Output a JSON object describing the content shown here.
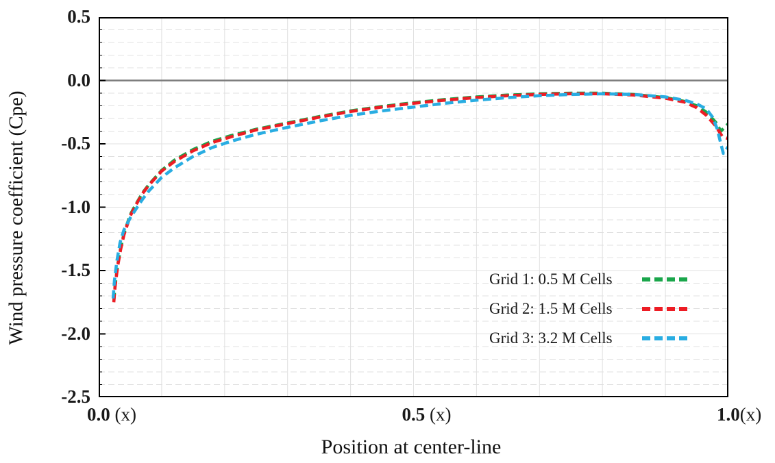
{
  "chart_data": {
    "type": "line",
    "title": "",
    "xlabel": "Position at center-line",
    "ylabel": "Wind pressure coefficient (Cpe)",
    "xlim": [
      0.0,
      1.0
    ],
    "ylim": [
      -2.5,
      0.5
    ],
    "grid": {
      "x_minor_step": 0.1,
      "y_minor_step": 0.1,
      "y_major_step": 0.5,
      "minor_style": "dashed",
      "major_style": "solid",
      "grid_color": "#e0e0e0",
      "zero_line_color": "#7d7d7d",
      "border_color": "#000000"
    },
    "y_ticks": [
      {
        "label": "0.5",
        "value": 0.5
      },
      {
        "label": "0.0",
        "value": 0.0
      },
      {
        "label": "-0.5",
        "value": -0.5
      },
      {
        "label": "-1.0",
        "value": -1.0
      },
      {
        "label": "-1.5",
        "value": -1.5
      },
      {
        "label": "-2.0",
        "value": -2.0
      },
      {
        "label": "-2.5",
        "value": -2.5
      }
    ],
    "x_ticks": [
      {
        "num": "0.0",
        "suffix": " (x)",
        "value": 0.0
      },
      {
        "num": "0.5",
        "suffix": " (x)",
        "value": 0.5
      },
      {
        "num": "1.0",
        "suffix": "(x)",
        "value": 1.0
      }
    ],
    "legend_position": "inside-lower-right",
    "line_style": "dashed",
    "series": [
      {
        "name": "Grid 1: 0.5 M Cells",
        "color": "#1aa64b",
        "points": [
          [
            0.024,
            -1.74
          ],
          [
            0.026,
            -1.62
          ],
          [
            0.03,
            -1.46
          ],
          [
            0.035,
            -1.32
          ],
          [
            0.04,
            -1.21
          ],
          [
            0.05,
            -1.06
          ],
          [
            0.06,
            -0.97
          ],
          [
            0.07,
            -0.885
          ],
          [
            0.08,
            -0.82
          ],
          [
            0.1,
            -0.71
          ],
          [
            0.12,
            -0.63
          ],
          [
            0.15,
            -0.545
          ],
          [
            0.18,
            -0.48
          ],
          [
            0.21,
            -0.435
          ],
          [
            0.25,
            -0.385
          ],
          [
            0.3,
            -0.335
          ],
          [
            0.35,
            -0.285
          ],
          [
            0.4,
            -0.24
          ],
          [
            0.45,
            -0.205
          ],
          [
            0.5,
            -0.175
          ],
          [
            0.55,
            -0.15
          ],
          [
            0.6,
            -0.13
          ],
          [
            0.65,
            -0.115
          ],
          [
            0.7,
            -0.105
          ],
          [
            0.75,
            -0.1
          ],
          [
            0.8,
            -0.1
          ],
          [
            0.85,
            -0.11
          ],
          [
            0.9,
            -0.135
          ],
          [
            0.93,
            -0.165
          ],
          [
            0.95,
            -0.2
          ],
          [
            0.965,
            -0.25
          ],
          [
            0.98,
            -0.33
          ],
          [
            0.988,
            -0.4
          ],
          [
            1.0,
            -0.34
          ]
        ]
      },
      {
        "name": "Grid 2: 1.5 M Cells",
        "color": "#ed1c24",
        "points": [
          [
            0.024,
            -1.75
          ],
          [
            0.026,
            -1.63
          ],
          [
            0.03,
            -1.47
          ],
          [
            0.035,
            -1.33
          ],
          [
            0.04,
            -1.22
          ],
          [
            0.05,
            -1.07
          ],
          [
            0.06,
            -0.975
          ],
          [
            0.07,
            -0.89
          ],
          [
            0.08,
            -0.825
          ],
          [
            0.1,
            -0.715
          ],
          [
            0.12,
            -0.64
          ],
          [
            0.15,
            -0.555
          ],
          [
            0.18,
            -0.49
          ],
          [
            0.21,
            -0.445
          ],
          [
            0.25,
            -0.39
          ],
          [
            0.3,
            -0.34
          ],
          [
            0.35,
            -0.29
          ],
          [
            0.4,
            -0.245
          ],
          [
            0.45,
            -0.21
          ],
          [
            0.5,
            -0.18
          ],
          [
            0.55,
            -0.155
          ],
          [
            0.6,
            -0.135
          ],
          [
            0.65,
            -0.12
          ],
          [
            0.7,
            -0.11
          ],
          [
            0.75,
            -0.105
          ],
          [
            0.8,
            -0.105
          ],
          [
            0.85,
            -0.115
          ],
          [
            0.9,
            -0.14
          ],
          [
            0.93,
            -0.17
          ],
          [
            0.95,
            -0.215
          ],
          [
            0.965,
            -0.275
          ],
          [
            0.98,
            -0.36
          ],
          [
            0.99,
            -0.44
          ],
          [
            1.0,
            -0.46
          ]
        ]
      },
      {
        "name": "Grid 3: 3.2 M Cells",
        "color": "#29ade2",
        "points": [
          [
            0.023,
            -1.72
          ],
          [
            0.025,
            -1.58
          ],
          [
            0.029,
            -1.42
          ],
          [
            0.034,
            -1.28
          ],
          [
            0.04,
            -1.18
          ],
          [
            0.05,
            -1.085
          ],
          [
            0.06,
            -1.01
          ],
          [
            0.07,
            -0.935
          ],
          [
            0.08,
            -0.87
          ],
          [
            0.1,
            -0.765
          ],
          [
            0.12,
            -0.69
          ],
          [
            0.15,
            -0.6
          ],
          [
            0.18,
            -0.53
          ],
          [
            0.21,
            -0.48
          ],
          [
            0.25,
            -0.425
          ],
          [
            0.3,
            -0.37
          ],
          [
            0.35,
            -0.32
          ],
          [
            0.4,
            -0.275
          ],
          [
            0.45,
            -0.24
          ],
          [
            0.5,
            -0.21
          ],
          [
            0.55,
            -0.18
          ],
          [
            0.6,
            -0.155
          ],
          [
            0.65,
            -0.135
          ],
          [
            0.7,
            -0.12
          ],
          [
            0.75,
            -0.11
          ],
          [
            0.8,
            -0.105
          ],
          [
            0.85,
            -0.11
          ],
          [
            0.9,
            -0.13
          ],
          [
            0.93,
            -0.155
          ],
          [
            0.95,
            -0.185
          ],
          [
            0.965,
            -0.225
          ],
          [
            0.975,
            -0.29
          ],
          [
            0.982,
            -0.38
          ],
          [
            0.988,
            -0.5
          ],
          [
            0.992,
            -0.575
          ],
          [
            1.0,
            -0.52
          ]
        ]
      }
    ]
  }
}
